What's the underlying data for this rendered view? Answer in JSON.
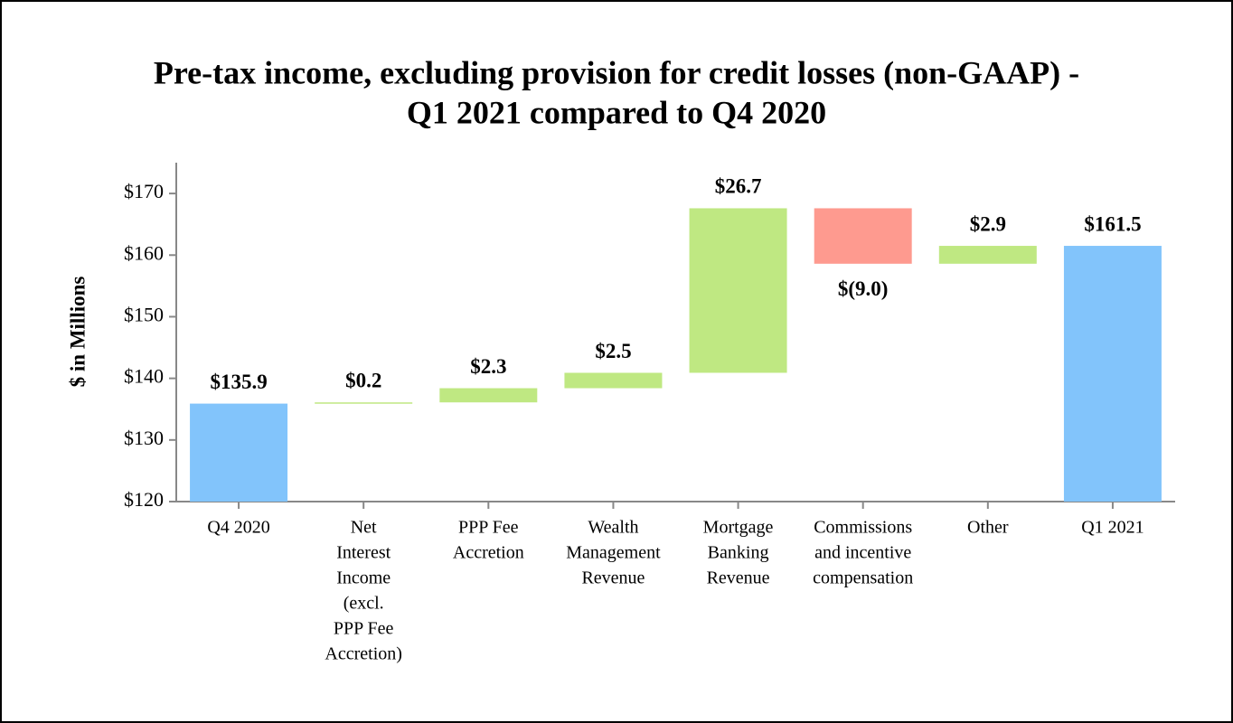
{
  "chart_data": {
    "type": "waterfall",
    "title": [
      "Pre-tax income, excluding provision for credit losses (non-GAAP) -",
      "Q1 2021 compared to Q4 2020"
    ],
    "y_label": "$ in Millions",
    "categories": [
      [
        "Q4 2020"
      ],
      [
        "Net",
        "Interest",
        "Income",
        "(excl.",
        "PPP Fee",
        "Accretion)"
      ],
      [
        "PPP Fee",
        "Accretion"
      ],
      [
        "Wealth",
        "Management",
        "Revenue"
      ],
      [
        "Mortgage",
        "Banking",
        "Revenue"
      ],
      [
        "Commissions",
        "and incentive",
        "compensation"
      ],
      [
        "Other"
      ],
      [
        "Q1 2021"
      ]
    ],
    "values": [
      135.9,
      0.2,
      2.3,
      2.5,
      26.7,
      -9.0,
      2.9,
      161.5
    ],
    "value_labels": [
      "$135.9",
      "$0.2",
      "$2.3",
      "$2.5",
      "$26.7",
      "$(9.0)",
      "$2.9",
      "$161.5"
    ],
    "is_total": [
      true,
      false,
      false,
      false,
      false,
      false,
      false,
      true
    ],
    "colors": {
      "total": "#82c4fb",
      "increase": "#bfe882",
      "decrease": "#fe9a8f"
    },
    "ylim": [
      120,
      175
    ],
    "yticks": [
      {
        "value": 120,
        "label": "$120"
      },
      {
        "value": 130,
        "label": "$130"
      },
      {
        "value": 140,
        "label": "$140"
      },
      {
        "value": 150,
        "label": "$150"
      },
      {
        "value": 160,
        "label": "$160"
      },
      {
        "value": 170,
        "label": "$170"
      }
    ]
  }
}
